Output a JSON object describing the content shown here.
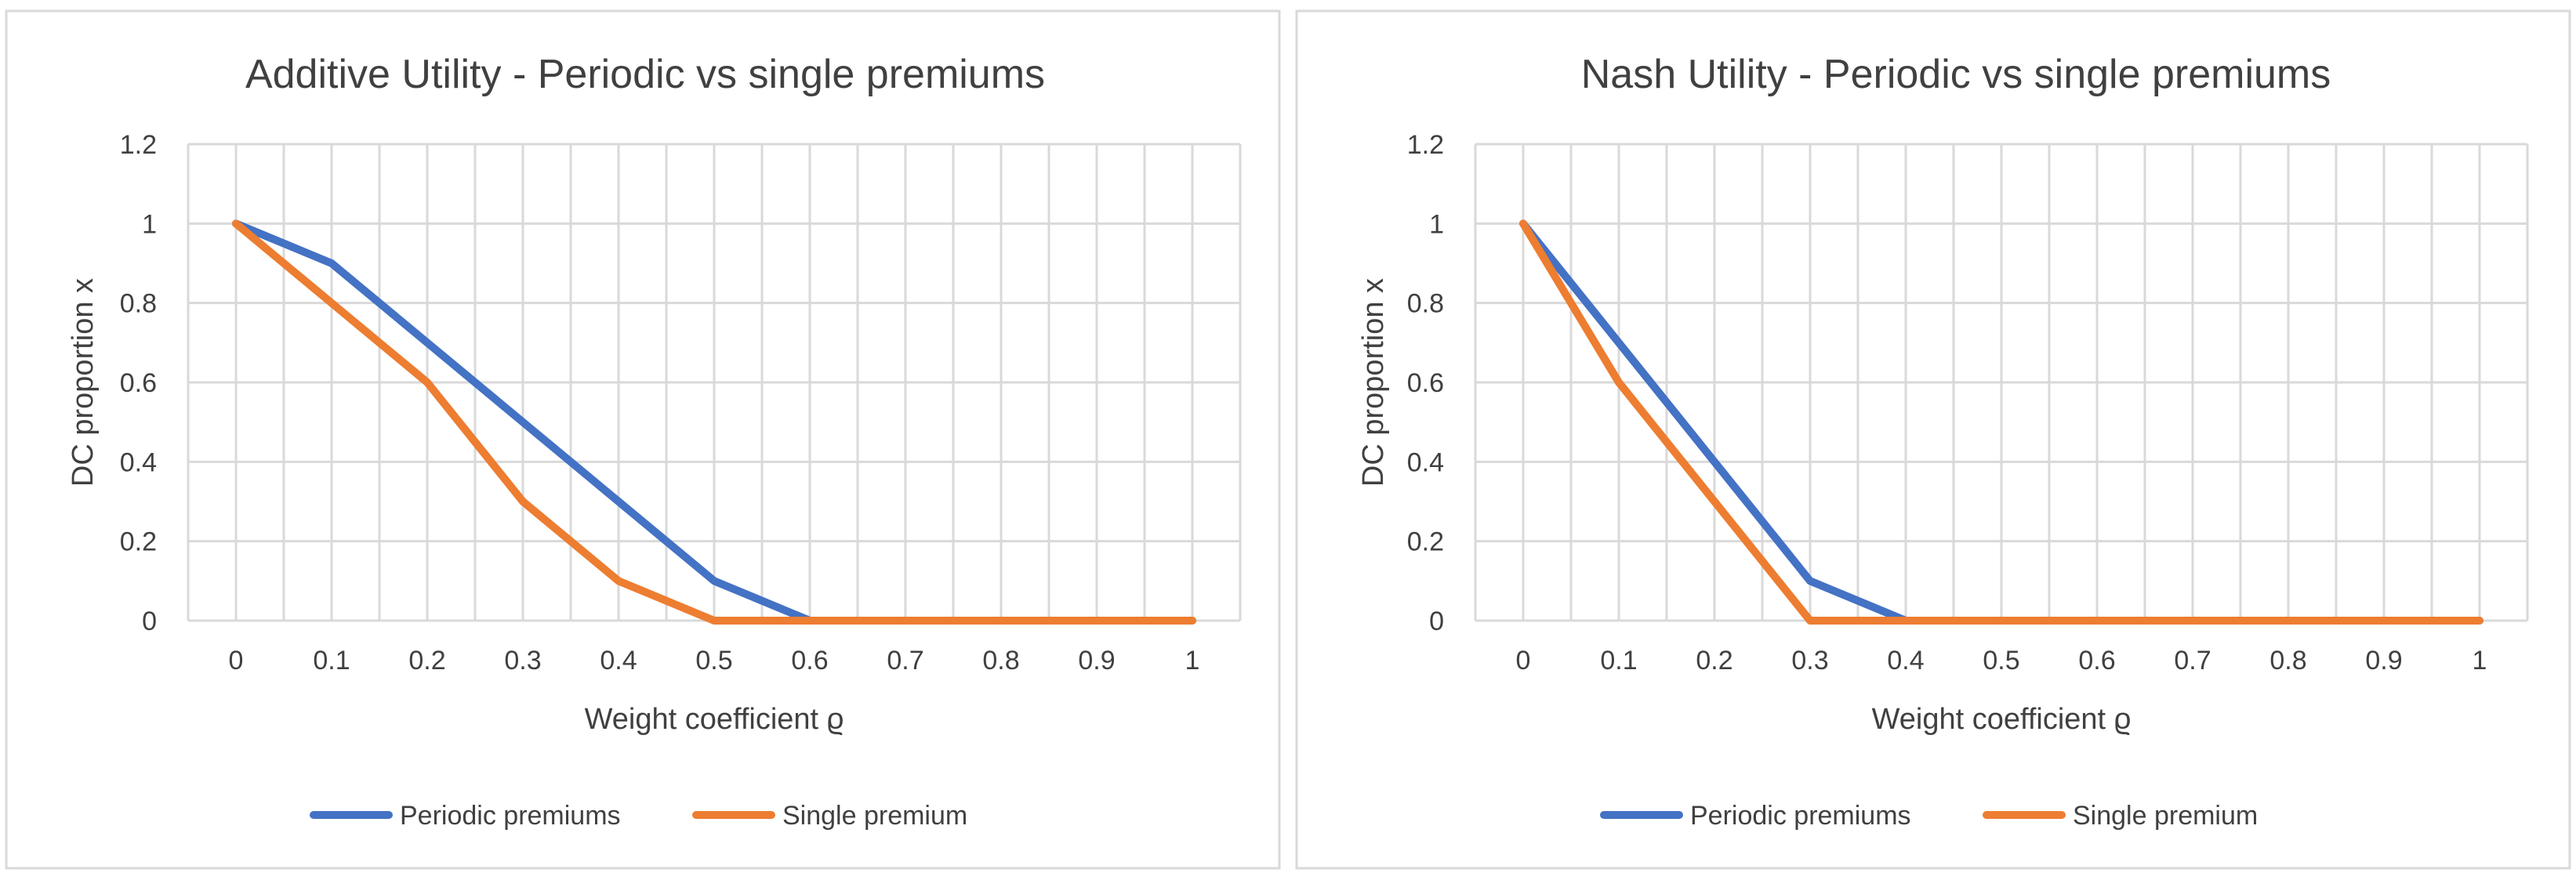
{
  "colors": {
    "periodic": "#4472C4",
    "single": "#ED7D31"
  },
  "chart_data": [
    {
      "type": "line",
      "title": "Additive Utility - Periodic vs single premiums",
      "xlabel": "Weight coefficient ϱ",
      "ylabel": "DC proportion x",
      "categories": [
        "0",
        "0.1",
        "0.2",
        "0.3",
        "0.4",
        "0.5",
        "0.6",
        "0.7",
        "0.8",
        "0.9",
        "1"
      ],
      "y_ticks": [
        "0",
        "0.2",
        "0.4",
        "0.6",
        "0.8",
        "1",
        "1.2"
      ],
      "ylim": [
        0,
        1.2
      ],
      "grid": true,
      "legend": "bottom",
      "series": [
        {
          "name": "Periodic premiums",
          "values": [
            1,
            0.9,
            0.7,
            0.5,
            0.3,
            0.1,
            0,
            0,
            0,
            0,
            0
          ]
        },
        {
          "name": "Single premium",
          "values": [
            1,
            0.8,
            0.6,
            0.3,
            0.1,
            0,
            0,
            0,
            0,
            0,
            0
          ]
        }
      ]
    },
    {
      "type": "line",
      "title": "Nash Utility - Periodic vs single premiums",
      "xlabel": "Weight coefficient ϱ",
      "ylabel": "DC proportion x",
      "categories": [
        "0",
        "0.1",
        "0.2",
        "0.3",
        "0.4",
        "0.5",
        "0.6",
        "0.7",
        "0.8",
        "0.9",
        "1"
      ],
      "y_ticks": [
        "0",
        "0.2",
        "0.4",
        "0.6",
        "0.8",
        "1",
        "1.2"
      ],
      "ylim": [
        0,
        1.2
      ],
      "grid": true,
      "legend": "bottom",
      "series": [
        {
          "name": "Periodic premiums",
          "values": [
            1,
            0.7,
            0.4,
            0.1,
            0,
            0,
            0,
            0,
            0,
            0,
            0
          ]
        },
        {
          "name": "Single premium",
          "values": [
            1,
            0.6,
            0.3,
            0,
            0,
            0,
            0,
            0,
            0,
            0,
            0
          ]
        }
      ]
    }
  ]
}
